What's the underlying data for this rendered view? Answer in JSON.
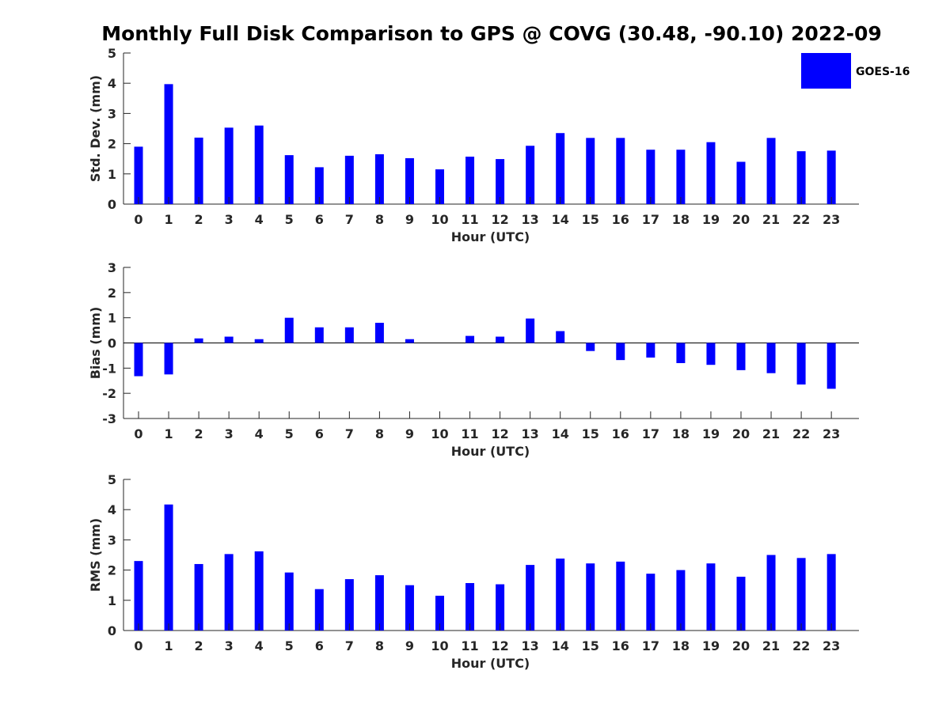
{
  "title": "Monthly Full Disk Comparison to GPS @ COVG (30.48, -90.10) 2022-09",
  "colors": {
    "bar": "#0000ff",
    "axis": "#262626"
  },
  "legend": {
    "label": "GOES-16",
    "position": "top-right"
  },
  "chart_data": [
    {
      "type": "bar",
      "title": "Monthly Full Disk Comparison to GPS @ COVG (30.48, -90.10) 2022-09",
      "xlabel": "Hour (UTC)",
      "ylabel": "Std. Dev. (mm)",
      "categories": [
        "0",
        "1",
        "2",
        "3",
        "4",
        "5",
        "6",
        "7",
        "8",
        "9",
        "10",
        "11",
        "12",
        "13",
        "14",
        "15",
        "16",
        "17",
        "18",
        "19",
        "20",
        "21",
        "22",
        "23"
      ],
      "series": [
        {
          "name": "GOES-16",
          "values": [
            1.9,
            3.97,
            2.2,
            2.53,
            2.6,
            1.62,
            1.22,
            1.6,
            1.65,
            1.52,
            1.15,
            1.57,
            1.49,
            1.93,
            2.35,
            2.19,
            2.19,
            1.8,
            1.8,
            2.05,
            1.4,
            2.19,
            1.75,
            1.77
          ]
        }
      ],
      "ylim": [
        0,
        5
      ],
      "yticks": [
        0,
        1,
        2,
        3,
        4,
        5
      ]
    },
    {
      "type": "bar",
      "xlabel": "Hour (UTC)",
      "ylabel": "Bias (mm)",
      "categories": [
        "0",
        "1",
        "2",
        "3",
        "4",
        "5",
        "6",
        "7",
        "8",
        "9",
        "10",
        "11",
        "12",
        "13",
        "14",
        "15",
        "16",
        "17",
        "18",
        "19",
        "20",
        "21",
        "22",
        "23"
      ],
      "series": [
        {
          "name": "GOES-16",
          "values": [
            -1.32,
            -1.25,
            0.18,
            0.25,
            0.15,
            1.0,
            0.62,
            0.62,
            0.8,
            0.15,
            0.0,
            0.28,
            0.25,
            0.97,
            0.47,
            -0.32,
            -0.68,
            -0.58,
            -0.8,
            -0.87,
            -1.08,
            -1.2,
            -1.65,
            -1.82
          ]
        }
      ],
      "ylim": [
        -3,
        3
      ],
      "yticks": [
        -3,
        -2,
        -1,
        0,
        1,
        2,
        3
      ]
    },
    {
      "type": "bar",
      "xlabel": "Hour (UTC)",
      "ylabel": "RMS (mm)",
      "categories": [
        "0",
        "1",
        "2",
        "3",
        "4",
        "5",
        "6",
        "7",
        "8",
        "9",
        "10",
        "11",
        "12",
        "13",
        "14",
        "15",
        "16",
        "17",
        "18",
        "19",
        "20",
        "21",
        "22",
        "23"
      ],
      "series": [
        {
          "name": "GOES-16",
          "values": [
            2.3,
            4.17,
            2.2,
            2.53,
            2.62,
            1.92,
            1.37,
            1.7,
            1.83,
            1.5,
            1.15,
            1.57,
            1.53,
            2.17,
            2.38,
            2.22,
            2.28,
            1.88,
            2.0,
            2.22,
            1.78,
            2.5,
            2.4,
            2.53
          ]
        }
      ],
      "ylim": [
        0,
        5
      ],
      "yticks": [
        0,
        1,
        2,
        3,
        4,
        5
      ]
    }
  ]
}
